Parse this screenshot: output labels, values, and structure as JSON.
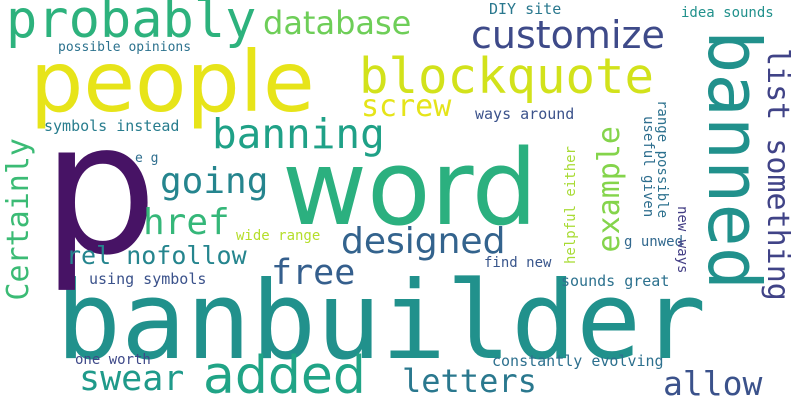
{
  "words": [
    {
      "text": "banbuilder",
      "color": "#21918c"
    },
    {
      "text": "word",
      "color": "#2bb07f"
    },
    {
      "text": "p",
      "color": "#471365"
    },
    {
      "text": "people",
      "color": "#e7e419"
    },
    {
      "text": "banned",
      "color": "#21918c"
    },
    {
      "text": "blockquote",
      "color": "#d2e21b"
    },
    {
      "text": "probably",
      "color": "#2db27d"
    },
    {
      "text": "customize",
      "color": "#3e4a89"
    },
    {
      "text": "database",
      "color": "#6ece58"
    },
    {
      "text": "banning",
      "color": "#1fa187"
    },
    {
      "text": "screw",
      "color": "#e5e419"
    },
    {
      "text": "going",
      "color": "#25858e"
    },
    {
      "text": "href",
      "color": "#35b779"
    },
    {
      "text": "designed",
      "color": "#33638d"
    },
    {
      "text": "rel nofollow",
      "color": "#25858e"
    },
    {
      "text": "free",
      "color": "#355f8d"
    },
    {
      "text": "added",
      "color": "#20a486"
    },
    {
      "text": "swear",
      "color": "#1f9a8a"
    },
    {
      "text": "letters",
      "color": "#2a788e"
    },
    {
      "text": "allow",
      "color": "#3b528b"
    },
    {
      "text": "Certainly",
      "color": "#3bbb75"
    },
    {
      "text": "example",
      "color": "#84d44b"
    },
    {
      "text": "list something",
      "color": "#404387"
    },
    {
      "text": "symbols instead",
      "color": "#287d8e"
    },
    {
      "text": "possible opinions",
      "color": "#2c728e"
    },
    {
      "text": "DIY site",
      "color": "#2a788e"
    },
    {
      "text": "idea sounds",
      "color": "#21918c"
    },
    {
      "text": "ways around",
      "color": "#3b528b"
    },
    {
      "text": "e g",
      "color": "#2e6e8e"
    },
    {
      "text": "wide range",
      "color": "#b5de2b"
    },
    {
      "text": "using symbols",
      "color": "#3b528b"
    },
    {
      "text": "find new",
      "color": "#39568c"
    },
    {
      "text": "sounds great",
      "color": "#2c718e"
    },
    {
      "text": "one worth",
      "color": "#3e4989"
    },
    {
      "text": "constantly evolving",
      "color": "#2d708e"
    },
    {
      "text": "helpful either",
      "color": "#a8db34"
    },
    {
      "text": "useful given",
      "color": "#2e6e8e"
    },
    {
      "text": "range possible",
      "color": "#2c718e"
    },
    {
      "text": "new ways",
      "color": "#433e85"
    },
    {
      "text": "g unwed",
      "color": "#31688e"
    }
  ]
}
